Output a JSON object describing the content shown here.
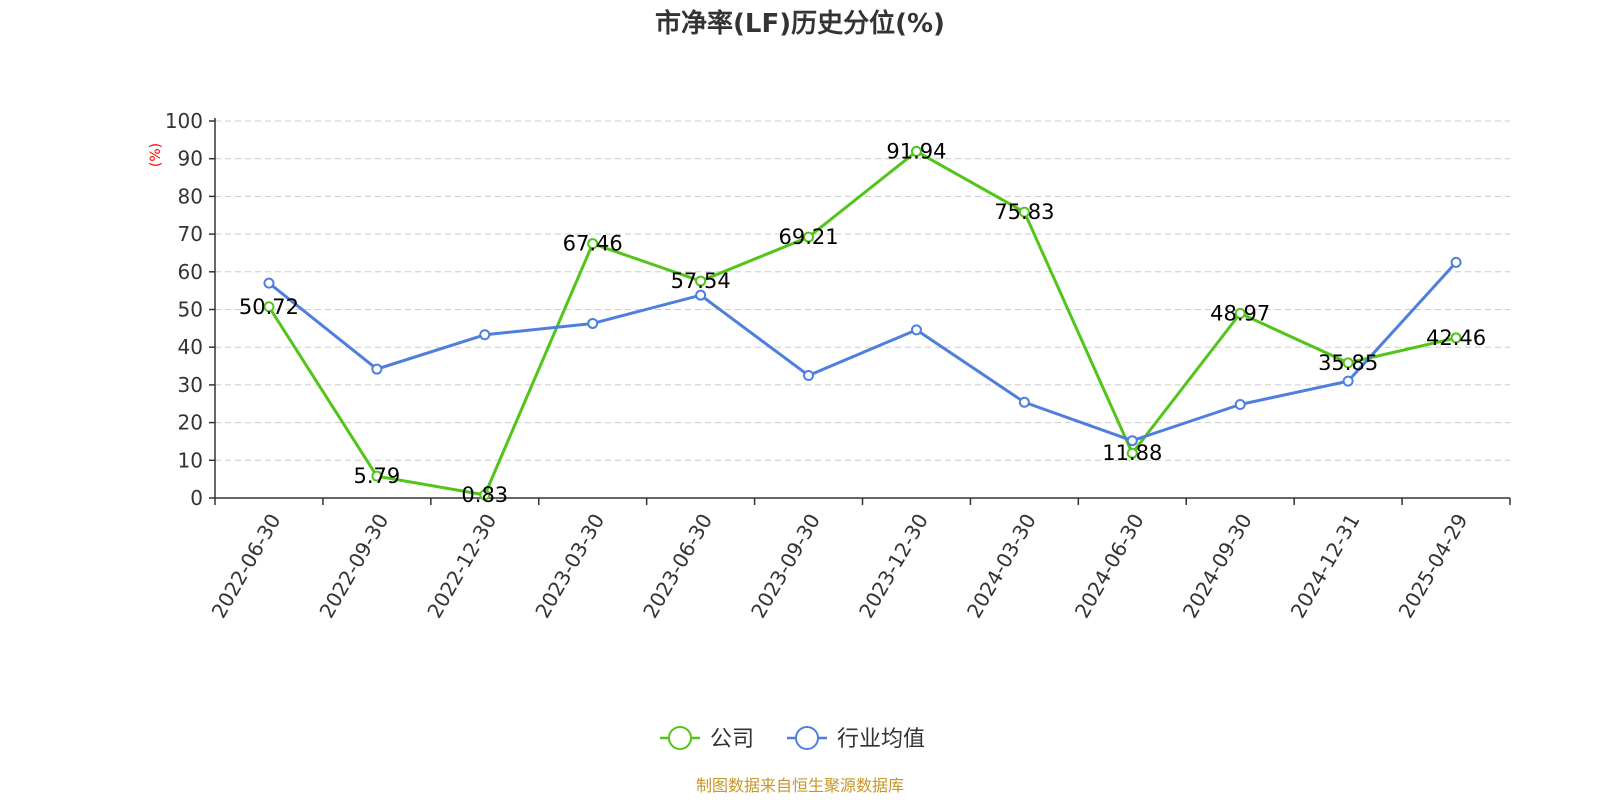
{
  "chart_data": {
    "type": "line",
    "title": "市净率(LF)历史分位(%)",
    "ylabel": "(%)",
    "xlabel": "",
    "ylim": [
      0,
      100
    ],
    "yticks": [
      0,
      10,
      20,
      30,
      40,
      50,
      60,
      70,
      80,
      90,
      100
    ],
    "grid": true,
    "legend_position": "bottom-center",
    "categories": [
      "2022-06-30",
      "2022-09-30",
      "2022-12-30",
      "2023-03-30",
      "2023-06-30",
      "2023-09-30",
      "2023-12-30",
      "2024-03-30",
      "2024-06-30",
      "2024-09-30",
      "2024-12-31",
      "2025-04-29"
    ],
    "series": [
      {
        "name": "公司",
        "color": "#52c41a",
        "values": [
          50.72,
          5.79,
          0.83,
          67.46,
          57.54,
          69.21,
          91.94,
          75.83,
          11.88,
          48.97,
          35.85,
          42.46
        ],
        "labels": [
          "50.72",
          "5.79",
          "0.83",
          "67.46",
          "57.54",
          "69.21",
          "91.94",
          "75.83",
          "11.88",
          "48.97",
          "35.85",
          "42.46"
        ]
      },
      {
        "name": "行业均值",
        "color": "#4e7fdd",
        "values": [
          57.0,
          34.2,
          43.3,
          46.3,
          53.8,
          32.5,
          44.6,
          25.4,
          15.2,
          24.8,
          31.0,
          62.5
        ]
      }
    ],
    "source": "制图数据来自恒生聚源数据库"
  }
}
